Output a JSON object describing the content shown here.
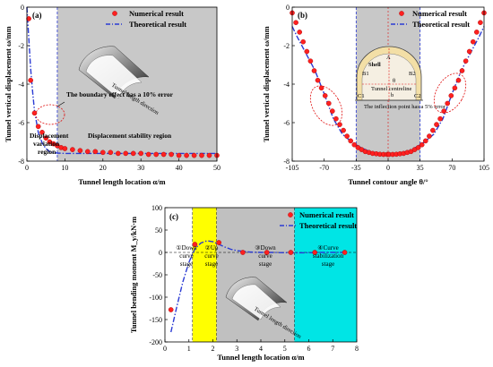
{
  "chart_data": [
    {
      "panel": "(a)",
      "type": "line",
      "xlabel": "Tunnel length location α/m",
      "ylabel": "Tunnel vertical displacement ω/mm",
      "xlim": [
        0,
        50
      ],
      "ylim": [
        -8,
        0
      ],
      "xticks": [
        "0",
        "10",
        "20",
        "30",
        "40",
        "50"
      ],
      "yticks": [
        "0",
        "-2",
        "-4",
        "-6",
        "-8"
      ],
      "legend": [
        "Numerical result",
        "Theoretical result"
      ],
      "shaded_from": 8,
      "series": [
        {
          "name": "Numerical result",
          "x": [
            0.5,
            1,
            2,
            3,
            4,
            5,
            6,
            7,
            8,
            9,
            10,
            12,
            14,
            16,
            18,
            20,
            22,
            24,
            26,
            28,
            30,
            32,
            34,
            36,
            38,
            40,
            42,
            44,
            46,
            48,
            50
          ],
          "y": [
            -0.6,
            -3.8,
            -5.5,
            -6.2,
            -6.5,
            -6.8,
            -7.0,
            -7.1,
            -7.2,
            -7.3,
            -7.35,
            -7.4,
            -7.45,
            -7.5,
            -7.5,
            -7.55,
            -7.55,
            -7.6,
            -7.6,
            -7.6,
            -7.6,
            -7.65,
            -7.65,
            -7.65,
            -7.65,
            -7.7,
            -7.7,
            -7.7,
            -7.7,
            -7.7,
            -7.7
          ]
        },
        {
          "name": "Theoretical result",
          "x": [
            0,
            0.5,
            1,
            1.5,
            2,
            3,
            4,
            5,
            6,
            7,
            8,
            10,
            15,
            20,
            30,
            40,
            50
          ],
          "y": [
            0,
            -1.6,
            -3.2,
            -4.4,
            -5.4,
            -6.5,
            -7.05,
            -7.35,
            -7.5,
            -7.55,
            -7.58,
            -7.6,
            -7.6,
            -7.6,
            -7.6,
            -7.6,
            -7.6
          ]
        }
      ],
      "annotations": {
        "direction": "Tunnel length direction",
        "boundary": "The boundary effect has a 10% error",
        "region_left": [
          "Displacement",
          "variation",
          "region"
        ],
        "region_right": "Displacement stability region"
      }
    },
    {
      "panel": "(b)",
      "type": "line",
      "xlabel": "Tunnel contour angle θ/°",
      "ylabel": "Tunnel vertical displacement ω/mm",
      "xlim": [
        -105,
        105
      ],
      "ylim": [
        -8,
        0
      ],
      "xticks": [
        "-105",
        "-70",
        "-35",
        "0",
        "35",
        "70",
        "105"
      ],
      "yticks": [
        "0",
        "-2",
        "-4",
        "-6",
        "-8"
      ],
      "legend": [
        "Numerical result",
        "Theoretical result"
      ],
      "shaded_range": [
        -35,
        35
      ],
      "series": [
        {
          "name": "Numerical result",
          "x": [
            -105,
            -101,
            -97,
            -93,
            -89,
            -85,
            -81,
            -77,
            -73,
            -69,
            -65,
            -61,
            -57,
            -53,
            -49,
            -45,
            -41,
            -37,
            -33,
            -29,
            -25,
            -21,
            -17,
            -13,
            -9,
            -5,
            -1,
            1,
            5,
            9,
            13,
            17,
            21,
            25,
            29,
            33,
            37,
            41,
            45,
            49,
            53,
            57,
            61,
            65,
            69,
            73,
            77,
            81,
            85,
            89,
            93,
            97,
            101,
            105
          ],
          "y": [
            -0.3,
            -0.8,
            -1.3,
            -1.8,
            -2.3,
            -2.8,
            -3.3,
            -3.8,
            -4.2,
            -4.6,
            -5.0,
            -5.4,
            -5.8,
            -6.1,
            -6.4,
            -6.7,
            -6.95,
            -7.15,
            -7.3,
            -7.4,
            -7.5,
            -7.55,
            -7.6,
            -7.62,
            -7.64,
            -7.65,
            -7.65,
            -7.65,
            -7.65,
            -7.64,
            -7.62,
            -7.6,
            -7.55,
            -7.5,
            -7.4,
            -7.3,
            -7.15,
            -6.95,
            -6.7,
            -6.4,
            -6.1,
            -5.8,
            -5.4,
            -5.0,
            -4.6,
            -4.2,
            -3.8,
            -3.3,
            -2.8,
            -2.3,
            -1.8,
            -1.3,
            -0.8,
            -0.3
          ]
        },
        {
          "name": "Theoretical result",
          "x": [
            -105,
            -100,
            -90,
            -80,
            -70,
            -60,
            -50,
            -40,
            -35,
            -30,
            -20,
            -10,
            0,
            10,
            20,
            30,
            35,
            40,
            50,
            60,
            70,
            80,
            90,
            100,
            105
          ],
          "y": [
            -1.0,
            -1.5,
            -2.4,
            -3.3,
            -4.5,
            -5.8,
            -6.6,
            -7.0,
            -7.15,
            -7.3,
            -7.5,
            -7.6,
            -7.65,
            -7.6,
            -7.5,
            -7.3,
            -7.15,
            -7.0,
            -6.6,
            -5.8,
            -4.5,
            -3.3,
            -2.4,
            -1.5,
            -1.0
          ]
        }
      ],
      "annotations": {
        "shell": "Shell",
        "centreline": "Tunnel centreline",
        "inflection": "The inflection point has a 5% error",
        "labels": [
          "A",
          "B1",
          "B2",
          "C1",
          "C2",
          "θ",
          "b"
        ]
      }
    },
    {
      "panel": "(c)",
      "type": "line",
      "xlabel": "Tunnel length location α/m",
      "ylabel": "Tunnel bending moment M_y/kN·m",
      "xlim": [
        0,
        8
      ],
      "ylim": [
        -200,
        100
      ],
      "xticks": [
        "0",
        "1",
        "2",
        "3",
        "4",
        "5",
        "6",
        "7",
        "8"
      ],
      "yticks": [
        "100",
        "50",
        "0",
        "-50",
        "-100",
        "-150",
        "-200"
      ],
      "legend": [
        "Numerical result",
        "Theoretical result"
      ],
      "bands": [
        {
          "from": 1.15,
          "to": 2.15,
          "color": "#ffff00"
        },
        {
          "from": 2.15,
          "to": 5.4,
          "color": "#c0c0c0"
        },
        {
          "from": 5.4,
          "to": 8,
          "color": "#00e5e5"
        }
      ],
      "series": [
        {
          "name": "Numerical result",
          "x": [
            0.25,
            1.25,
            2.25,
            3.25,
            4.25,
            5.25,
            6.25,
            7.5
          ],
          "y": [
            -128,
            18,
            22,
            0,
            0,
            0,
            0,
            0
          ]
        },
        {
          "name": "Theoretical result",
          "x": [
            0.25,
            0.5,
            0.75,
            1.0,
            1.25,
            1.5,
            1.75,
            2.0,
            2.25,
            2.5,
            2.75,
            3.0,
            3.5,
            4.0,
            4.5,
            5.0,
            5.5,
            6.0,
            6.5,
            7.0,
            7.5
          ],
          "y": [
            -178,
            -120,
            -65,
            -22,
            8,
            21,
            26,
            24,
            18,
            12,
            7,
            4,
            1,
            0,
            0,
            -0.5,
            -1,
            -0.5,
            0,
            0,
            0
          ]
        }
      ],
      "stages": [
        [
          "①Down",
          "curve",
          "stage"
        ],
        [
          "②Up",
          "curve",
          "stage"
        ],
        [
          "③Down",
          "curve",
          "stage"
        ],
        [
          "④Curve",
          "stabilization",
          "stage"
        ]
      ],
      "direction": "Tunnel length direction"
    }
  ]
}
